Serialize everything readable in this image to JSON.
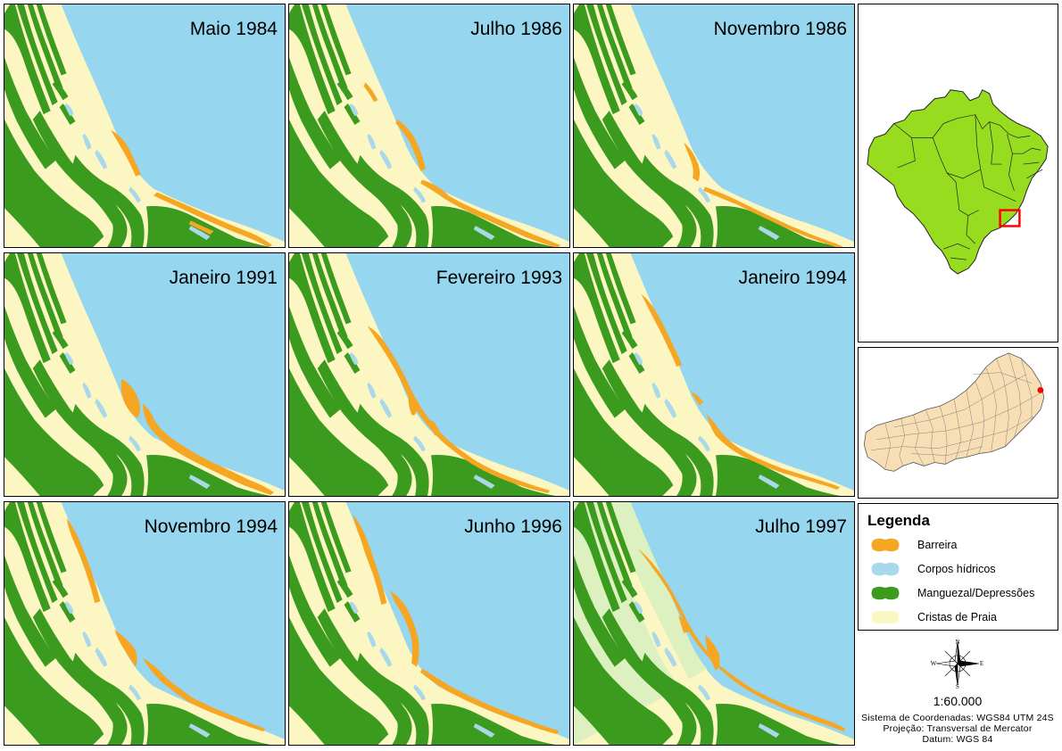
{
  "panels": [
    {
      "title": "Maio 1984",
      "stage": 0
    },
    {
      "title": "Julho 1986",
      "stage": 1
    },
    {
      "title": "Novembro 1986",
      "stage": 2
    },
    {
      "title": "Janeiro 1991",
      "stage": 3
    },
    {
      "title": "Fevereiro 1993",
      "stage": 4
    },
    {
      "title": "Janeiro 1994",
      "stage": 5
    },
    {
      "title": "Novembro 1994",
      "stage": 6
    },
    {
      "title": "Junho 1996",
      "stage": 7
    },
    {
      "title": "Julho 1997",
      "stage": 8
    }
  ],
  "legend": {
    "title": "Legenda",
    "items": [
      {
        "label": "Barreira",
        "color": "#f5a623"
      },
      {
        "label": "Corpos hídricos",
        "color": "#a8d8ea"
      },
      {
        "label": "Manguezal/Depressões",
        "color": "#3a9b1e"
      },
      {
        "label": "Cristas de Praia",
        "color": "#fbf6c2"
      }
    ]
  },
  "compass": {
    "n": "N",
    "s": "S",
    "e": "E",
    "w": "W"
  },
  "scale": "1:60.000",
  "info": {
    "crs": "Sistema de Coordenadas: WGS84 UTM 24S",
    "projection": "Projeção: Transversal de Mercator",
    "datum": "Datum: WGS 84"
  },
  "colors": {
    "sea": "#96d6ee",
    "mangrove": "#3a9b1e",
    "ridge": "#fbf6c2",
    "barrier": "#f5a623",
    "water": "#a8d8ea",
    "brazil": "#97dc1e",
    "rj": "#f7deb5",
    "highlight": "#ff0000"
  }
}
